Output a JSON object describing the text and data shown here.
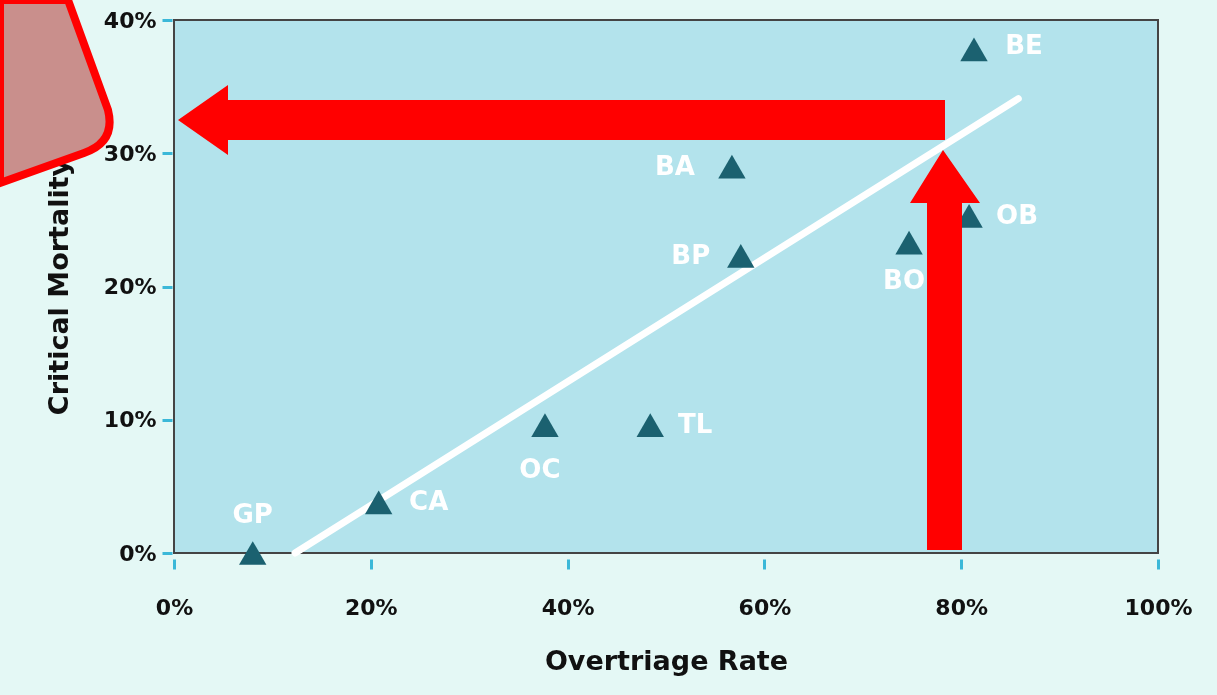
{
  "chart_data": {
    "type": "scatter",
    "xlabel": "Overtriage Rate",
    "ylabel": "Critical Mortality",
    "xlim": [
      0,
      100
    ],
    "ylim": [
      0,
      40
    ],
    "xticks": [
      {
        "value": 0,
        "label": "0%"
      },
      {
        "value": 20,
        "label": "20%"
      },
      {
        "value": 40,
        "label": "40%"
      },
      {
        "value": 60,
        "label": "60%"
      },
      {
        "value": 80,
        "label": "80%"
      },
      {
        "value": 100,
        "label": "100%"
      }
    ],
    "yticks": [
      {
        "value": 0,
        "label": "0%"
      },
      {
        "value": 10,
        "label": "10%"
      },
      {
        "value": 20,
        "label": "20%"
      },
      {
        "value": 30,
        "label": "30%"
      },
      {
        "value": 40,
        "label": "40%"
      }
    ],
    "series": [
      {
        "marker": "triangle",
        "color": "#1b6170",
        "x": [
          8.0,
          20.8,
          37.7,
          48.4,
          56.7,
          57.6,
          74.7,
          80.8,
          81.3
        ],
        "values": [
          0,
          3.8,
          9.6,
          9.6,
          29.0,
          22.3,
          23.3,
          25.3,
          37.8
        ],
        "value_labels": [
          "GP",
          "CA",
          "OC",
          "TL",
          "BA",
          "BP",
          "BO",
          "OB",
          "BE"
        ]
      },
      {
        "type": "line",
        "color": "#ffffff",
        "x": [
          12.3,
          85.8
        ],
        "values": [
          0,
          34.1
        ]
      }
    ]
  }
}
